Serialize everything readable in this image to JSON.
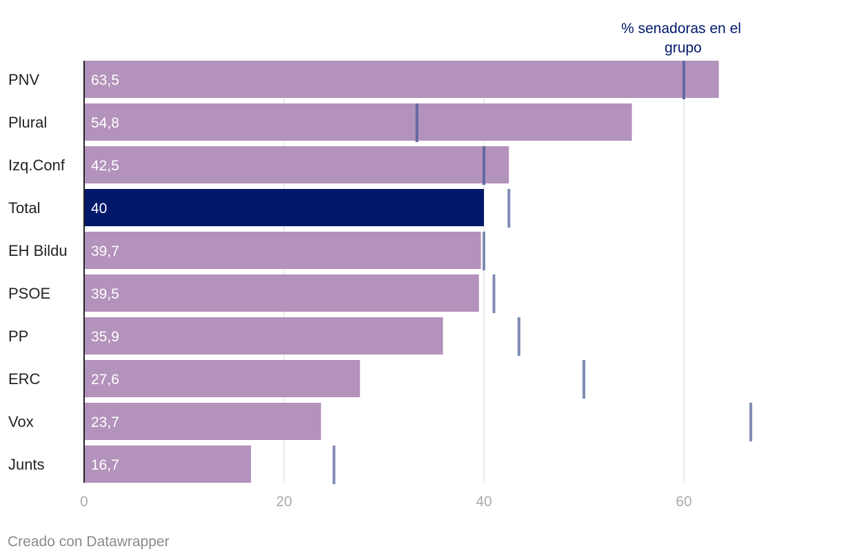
{
  "chart_data": {
    "type": "bar",
    "orientation": "horizontal",
    "categories": [
      "PNV",
      "Plural",
      "Izq.Conf",
      "Total",
      "EH Bildu",
      "PSOE",
      "PP",
      "ERC",
      "Vox",
      "Junts"
    ],
    "values": [
      63.5,
      54.8,
      42.5,
      40,
      39.7,
      39.5,
      35.9,
      27.6,
      23.7,
      16.7
    ],
    "value_labels": [
      "63,5",
      "54,8",
      "42,5",
      "40",
      "39,7",
      "39,5",
      "35,9",
      "27,6",
      "23,7",
      "16,7"
    ],
    "marker_series": {
      "name": "% senadoras en el grupo",
      "label_lines": [
        "% senadoras en el",
        "grupo"
      ],
      "values": [
        60,
        33.3,
        40,
        42.5,
        40,
        41,
        43.5,
        50,
        66.7,
        25
      ]
    },
    "highlight_category": "Total",
    "xlim": [
      0,
      70
    ],
    "xticks": [
      0,
      20,
      40,
      60
    ],
    "xtick_labels": [
      "0",
      "20",
      "40",
      "60"
    ],
    "grid": true,
    "colors": {
      "bar": "#b392bb",
      "highlight_bar": "#00186a",
      "marker": "#7f8ab4",
      "marker_on_bar": "#636aa1",
      "annotation": "#00186a",
      "grid": "#e4e4e4",
      "axis": "#222222",
      "tick": "#aaaaaa"
    }
  },
  "footer": {
    "credit": "Creado con Datawrapper"
  }
}
